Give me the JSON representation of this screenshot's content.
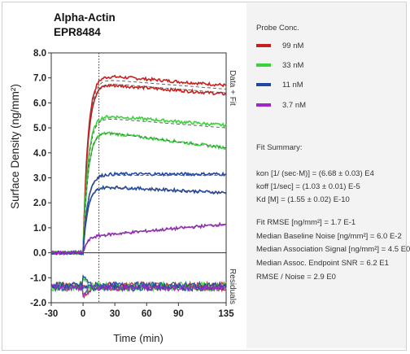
{
  "chart_data": {
    "type": "line",
    "title": "Alpha-Actin",
    "subtitle": "EPR8484",
    "xlabel": "Time (min)",
    "ylabel": "Surface Density (ng/mm²)",
    "xlim": [
      -30,
      135
    ],
    "ylim": [
      -2.0,
      8.0
    ],
    "residual_split": 0.0,
    "x_ticks": [
      "-30",
      "0",
      "30",
      "60",
      "90",
      "135"
    ],
    "x_tick_values": [
      -30,
      0,
      30,
      60,
      90,
      135
    ],
    "y_ticks": [
      "8.0",
      "7.0",
      "6.0",
      "5.0",
      "4.0",
      "3.0",
      "2.0",
      "1.0",
      "0.0",
      "-1.0",
      "-2.0"
    ],
    "y_tick_values": [
      8,
      7,
      6,
      5,
      4,
      3,
      2,
      1,
      0,
      -1,
      -2
    ],
    "panel_labels": {
      "top": "Data + Fit",
      "bottom": "Residuals"
    },
    "injection_end_x": 15,
    "grid": false,
    "legend_position": "right",
    "series": [
      {
        "name": "99 nM",
        "color": "#c8201e",
        "plateau": 6.95,
        "end": 6.55,
        "offset": 0.15
      },
      {
        "name": "99 nM",
        "color": "#c8201e",
        "plateau": 6.8,
        "end": 6.4,
        "offset": -0.05
      },
      {
        "name": "33 nM",
        "color": "#39d439",
        "plateau": 5.4,
        "end": 5.0,
        "offset": 0.1
      },
      {
        "name": "33 nM",
        "color": "#39d439",
        "plateau": 4.85,
        "end": 4.2,
        "offset": 0.0
      },
      {
        "name": "11 nM",
        "color": "#1f47a8",
        "plateau": 3.1,
        "end": 3.1,
        "offset": 0.05
      },
      {
        "name": "11 nM",
        "color": "#1f47a8",
        "plateau": 2.65,
        "end": 2.4,
        "offset": 0.0
      },
      {
        "name": "3.7 nM",
        "color": "#a027c6",
        "plateau": 0.7,
        "end": 1.15,
        "offset": 0.0
      }
    ],
    "legend": [
      {
        "label": "99 nM",
        "color": "#c8201e"
      },
      {
        "label": "33 nM",
        "color": "#39d439"
      },
      {
        "label": "11 nM",
        "color": "#1f47a8"
      },
      {
        "label": "3.7 nM",
        "color": "#a027c6"
      }
    ]
  },
  "legend_title": "Probe Conc.",
  "fit_summary": {
    "title": "Fit Summary:",
    "kon": "kon  [1/ (sec·M)]  =   (6.68 ± 0.03) E4",
    "koff": "koff  [1/sec]  =   (1.03 ± 0.01) E-5",
    "kd": "Kd  [M]  =   (1.55 ± 0.02) E-10",
    "rmse": "Fit RMSE [ng/mm²]  =   1.7 E-1",
    "noise": "Median Baseline Noise [ng/mm²]  =  6.0 E-2",
    "assoc": "Median Association Signal [ng/mm²]  =  4.5 E0",
    "snr": "Median Assoc. Endpoint SNR  =  6.2 E1",
    "rmse_noise": "RMSE / Noise  =   2.9 E0"
  }
}
